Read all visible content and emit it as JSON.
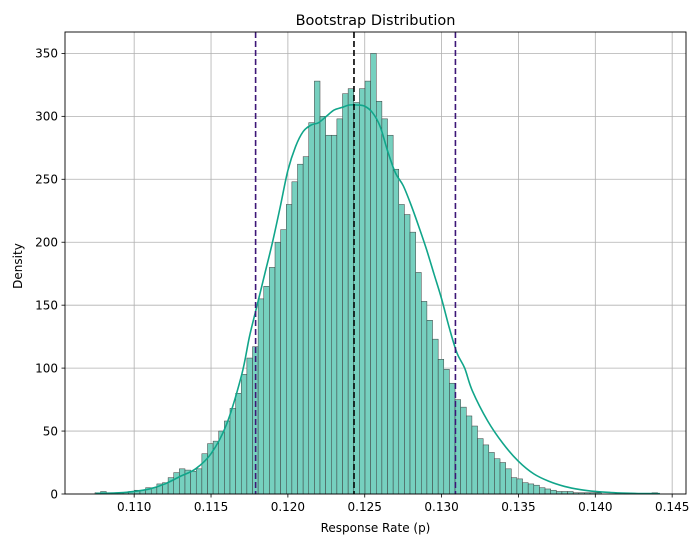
{
  "chart_data": {
    "type": "bar",
    "title": "Bootstrap Distribution",
    "xlabel": "Response Rate (p)",
    "ylabel": "Density",
    "xlim": [
      0.1055,
      0.1459
    ],
    "ylim": [
      0,
      367
    ],
    "grid": true,
    "x_ticks": [
      {
        "value": 0.11,
        "label": "0.110"
      },
      {
        "value": 0.115,
        "label": "0.115"
      },
      {
        "value": 0.12,
        "label": "0.120"
      },
      {
        "value": 0.125,
        "label": "0.125"
      },
      {
        "value": 0.13,
        "label": "0.130"
      },
      {
        "value": 0.135,
        "label": "0.135"
      },
      {
        "value": 0.14,
        "label": "0.140"
      },
      {
        "value": 0.145,
        "label": "0.145"
      }
    ],
    "y_ticks": [
      {
        "value": 0,
        "label": "0"
      },
      {
        "value": 50,
        "label": "50"
      },
      {
        "value": 100,
        "label": "100"
      },
      {
        "value": 150,
        "label": "150"
      },
      {
        "value": 200,
        "label": "200"
      },
      {
        "value": 250,
        "label": "250"
      },
      {
        "value": 300,
        "label": "300"
      },
      {
        "value": 350,
        "label": "350"
      }
    ],
    "histogram": {
      "bin_start": 0.10745,
      "bin_width": 0.000366,
      "bar_color": "#76d0bf",
      "edge_color": "#3b3b3b",
      "values": [
        1,
        2,
        1,
        1,
        1,
        1,
        2,
        3,
        3,
        5,
        5,
        8,
        9,
        13,
        17,
        20,
        19,
        18,
        20,
        32,
        40,
        42,
        50,
        58,
        68,
        80,
        95,
        108,
        117,
        155,
        165,
        180,
        200,
        210,
        230,
        248,
        262,
        268,
        295,
        328,
        300,
        285,
        285,
        298,
        318,
        322,
        311,
        322,
        328,
        350,
        312,
        298,
        285,
        258,
        230,
        222,
        208,
        176,
        153,
        138,
        123,
        107,
        99,
        88,
        75,
        69,
        62,
        54,
        44,
        39,
        33,
        28,
        25,
        20,
        13,
        12,
        9,
        8,
        7,
        5,
        4,
        3,
        2,
        2,
        2,
        1,
        1,
        1,
        1,
        1,
        0,
        0,
        0,
        0,
        1,
        0,
        0,
        0,
        0,
        1
      ]
    },
    "kde": {
      "color": "#11a58a",
      "x": [
        0.1075,
        0.109,
        0.11,
        0.111,
        0.112,
        0.113,
        0.114,
        0.115,
        0.116,
        0.117,
        0.1175,
        0.118,
        0.1185,
        0.119,
        0.1195,
        0.12,
        0.1205,
        0.121,
        0.1215,
        0.122,
        0.1225,
        0.123,
        0.1235,
        0.124,
        0.1245,
        0.125,
        0.1255,
        0.126,
        0.1265,
        0.127,
        0.1275,
        0.128,
        0.1285,
        0.129,
        0.1295,
        0.13,
        0.1305,
        0.131,
        0.1315,
        0.132,
        0.133,
        0.134,
        0.135,
        0.136,
        0.137,
        0.138,
        0.139,
        0.14,
        0.141,
        0.142,
        0.143,
        0.1442
      ],
      "y": [
        0.5,
        1,
        2,
        4,
        8,
        14,
        20,
        32,
        55,
        95,
        125,
        150,
        175,
        200,
        228,
        257,
        276,
        288,
        293,
        295,
        300,
        305,
        307,
        309,
        309,
        308,
        303,
        292,
        272,
        255,
        245,
        230,
        213,
        195,
        175,
        155,
        132,
        112,
        100,
        82,
        58,
        40,
        26,
        16,
        10,
        6,
        3.5,
        2,
        1.2,
        0.7,
        0.4,
        0.3
      ]
    },
    "reference_lines": [
      {
        "x": 0.1179,
        "color": "#3d1677",
        "style": "dashed"
      },
      {
        "x": 0.1243,
        "color": "#000000",
        "style": "dashed"
      },
      {
        "x": 0.1309,
        "color": "#3d1677",
        "style": "dashed"
      }
    ]
  }
}
